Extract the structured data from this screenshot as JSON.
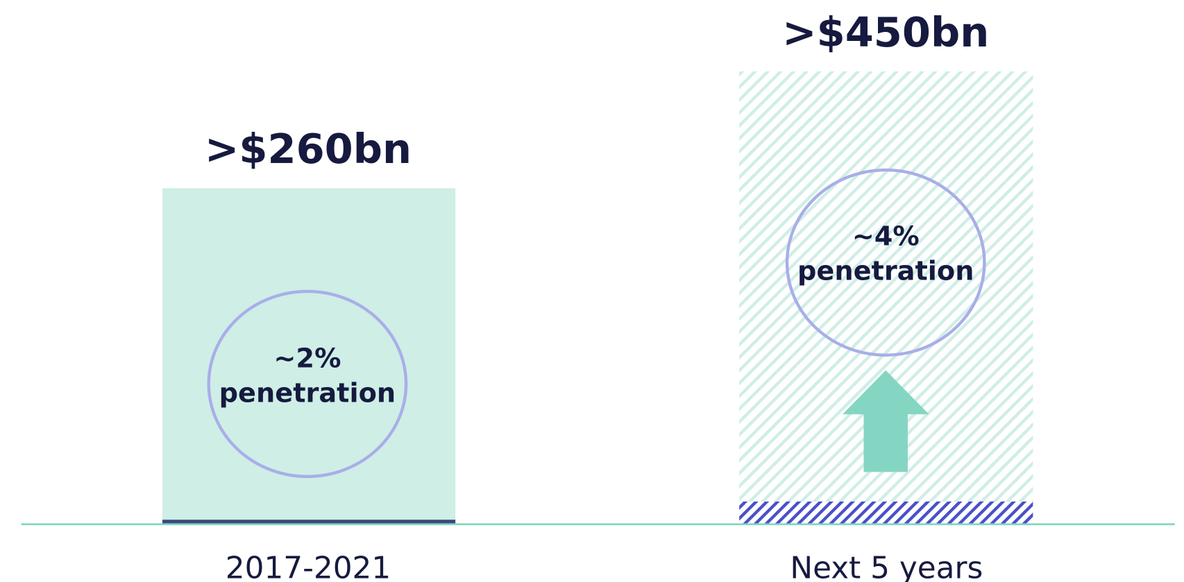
{
  "columns": [
    {
      "value": ">$260bn",
      "share": "~2%",
      "share_caption": "penetration",
      "label": "2017-2021"
    },
    {
      "value": ">$450bn",
      "share": "~4%",
      "share_caption": "penetration",
      "label": "Next 5 years"
    }
  ]
}
